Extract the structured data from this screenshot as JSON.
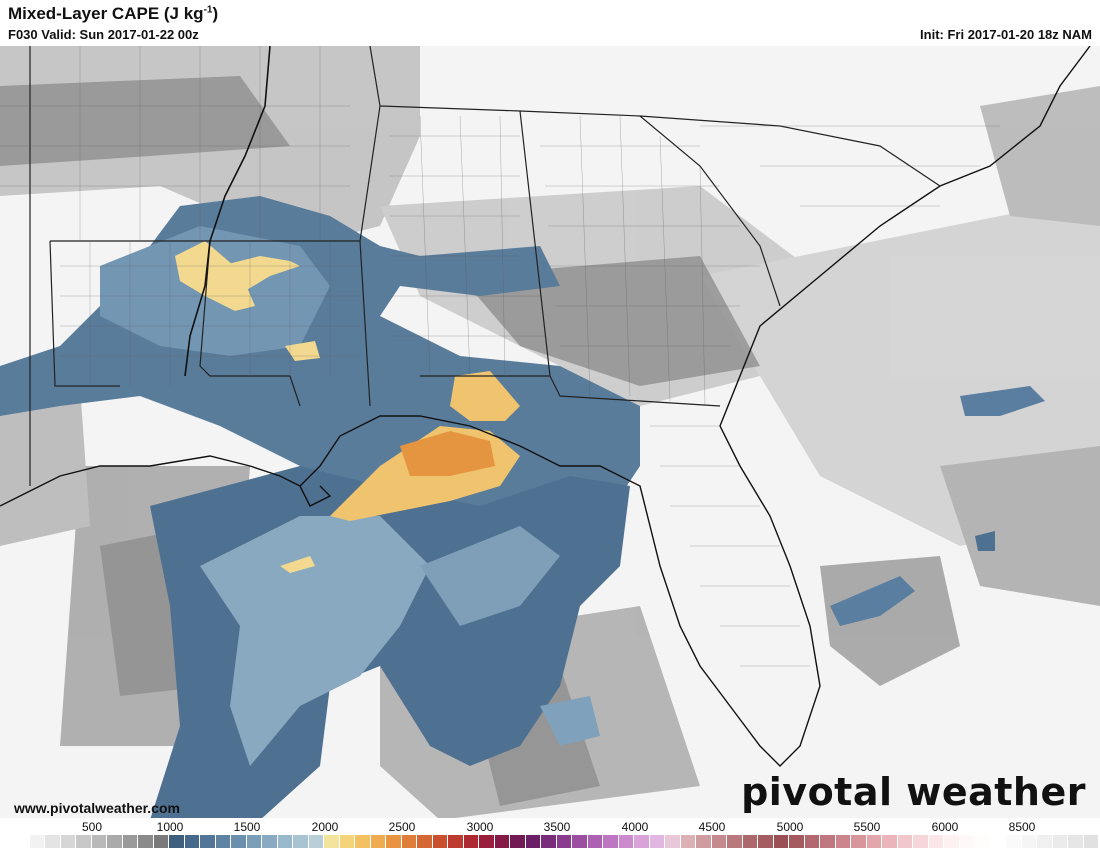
{
  "header": {
    "title_main": "Mixed-Layer CAPE (J kg",
    "title_sup": "-1",
    "title_end": ")",
    "valid_line": "F030 Valid: Sun 2017-01-22 00z",
    "init_line": "Init: Fri 2017-01-20 18z NAM"
  },
  "footer": {
    "url": "www.pivotalweather.com",
    "brand": "pivotal weather"
  },
  "colorbar": {
    "labels": [
      "500",
      "1000",
      "1500",
      "2000",
      "2500",
      "3000",
      "3500",
      "4000",
      "4500",
      "5000",
      "5500",
      "6000",
      "8500"
    ],
    "colors": [
      "#ffffff",
      "#f2f2f2",
      "#e4e4e4",
      "#d6d6d6",
      "#c8c8c8",
      "#b9b9b9",
      "#aaaaaa",
      "#9a9a9a",
      "#8a8a8a",
      "#7a7a7a",
      "#3e5f7d",
      "#46688a",
      "#527698",
      "#5e83a3",
      "#6b90ad",
      "#7a9db8",
      "#89aac2",
      "#98b8cb",
      "#a8c4d3",
      "#b8cfd8",
      "#f2e49a",
      "#f4d37b",
      "#f3c062",
      "#efab4f",
      "#e89443",
      "#df7d3b",
      "#d56734",
      "#ca4f2f",
      "#bd3a2f",
      "#ad2a33",
      "#9a1f3c",
      "#861a47",
      "#721a53",
      "#6a1f66",
      "#7a2d7c",
      "#8b3c8f",
      "#9c4ea1",
      "#ad61b2",
      "#bd76c1",
      "#cc8bce",
      "#d9a2d9",
      "#e2b6e2",
      "#e8c7d8",
      "#dcb1b6",
      "#cf9da0",
      "#c48a8d",
      "#b9787b",
      "#ad686b",
      "#a45c60",
      "#9b5055",
      "#a55a60",
      "#b36870",
      "#c0767e",
      "#cd858d",
      "#d8959c",
      "#e2a6ac",
      "#eab6bb",
      "#f1c7cb",
      "#f6d6d9",
      "#fae6e8",
      "#fdf1f2",
      "#fff8f9",
      "#fffcfc",
      "#ffffff",
      "#fafafa",
      "#f5f5f5",
      "#f0f0f0",
      "#ebebeb",
      "#e6e6e6",
      "#e1e1e1"
    ]
  },
  "legend_colors": {
    "low_gray": "#b9b9b9",
    "blue": "#46688a",
    "light_blue": "#98b8cb",
    "yellow": "#f4d37b",
    "orange": "#e89443"
  }
}
